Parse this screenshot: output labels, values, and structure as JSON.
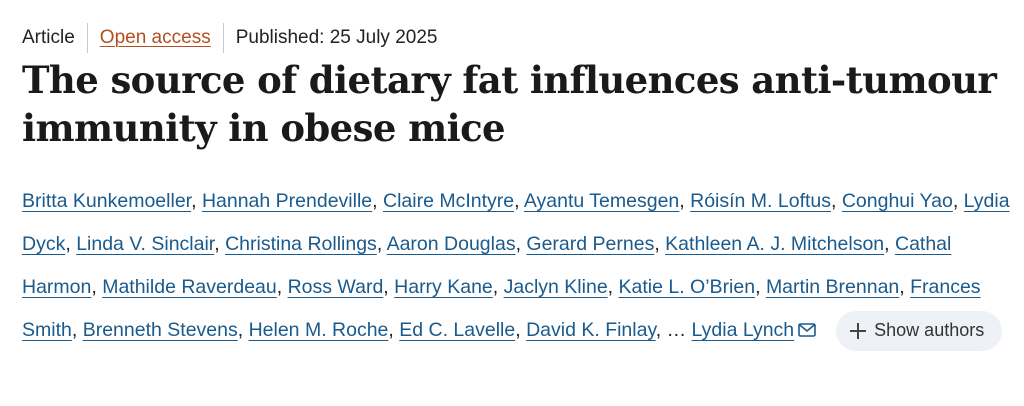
{
  "meta": {
    "article_type": "Article",
    "open_access": "Open access",
    "published": "Published: 25 July 2025"
  },
  "title": "The source of dietary fat influences anti-tumour immunity in obese mice",
  "authors": [
    "Britta Kunkemoeller",
    "Hannah Prendeville",
    "Claire McIntyre",
    "Ayantu Temesgen",
    "Róisín M. Loftus",
    "Conghui Yao",
    "Lydia Dyck",
    "Linda V. Sinclair",
    "Christina Rollings",
    "Aaron Douglas",
    "Gerard Pernes",
    "Kathleen A. J. Mitchelson",
    "Cathal Harmon",
    "Mathilde Raverdeau",
    "Ross Ward",
    "Harry Kane",
    "Jaclyn Kline",
    "Katie L. O’Brien",
    "Martin Brennan",
    "Frances Smith",
    "Brenneth Stevens",
    "Helen M. Roche",
    "Ed C. Lavelle",
    "David K. Finlay"
  ],
  "ellipsis": "…",
  "last_author": "Lydia Lynch",
  "show_authors_label": "Show authors",
  "colors": {
    "link": "#1a5a8c",
    "open_access": "#b34f1f",
    "button_bg": "#eef1f5"
  },
  "icons": {
    "mail": "envelope-icon",
    "plus": "plus-icon"
  }
}
